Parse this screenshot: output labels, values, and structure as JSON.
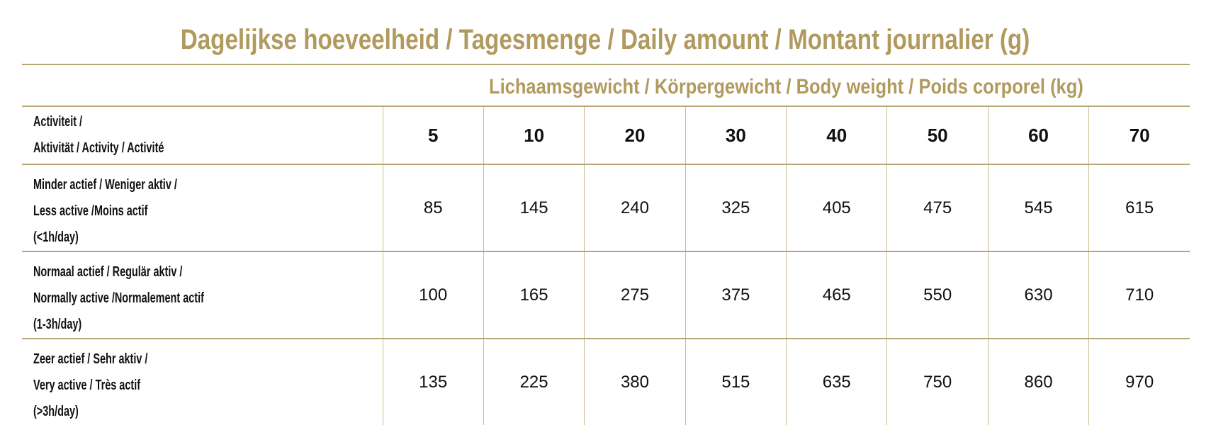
{
  "title": "Dagelijkse hoeveelheid / Tagesmenge / Daily amount / Montant journalier (g)",
  "subtitle": "Lichaamsgewicht / Körpergewicht / Body weight / Poids corporel (kg)",
  "table": {
    "header_label": [
      "Activiteit /",
      "Aktivität / Activity / Activité"
    ],
    "weights": [
      "5",
      "10",
      "20",
      "30",
      "40",
      "50",
      "60",
      "70"
    ],
    "rows": [
      {
        "label": [
          "Minder actief / Weniger aktiv /",
          "Less active /Moins actif",
          "(<1h/day)"
        ],
        "values": [
          "85",
          "145",
          "240",
          "325",
          "405",
          "475",
          "545",
          "615"
        ]
      },
      {
        "label": [
          "Normaal actief / Regulär aktiv /",
          "Normally active /Normalement actif",
          " (1-3h/day)"
        ],
        "values": [
          "100",
          "165",
          "275",
          "375",
          "465",
          "550",
          "630",
          "710"
        ]
      },
      {
        "label": [
          "Zeer actief / Sehr aktiv /",
          "Very active / Très actif",
          " (>3h/day)"
        ],
        "values": [
          "135",
          "225",
          "380",
          "515",
          "635",
          "750",
          "860",
          "970"
        ]
      }
    ]
  },
  "colors": {
    "accent": "#b09a5e",
    "text": "#111111"
  }
}
